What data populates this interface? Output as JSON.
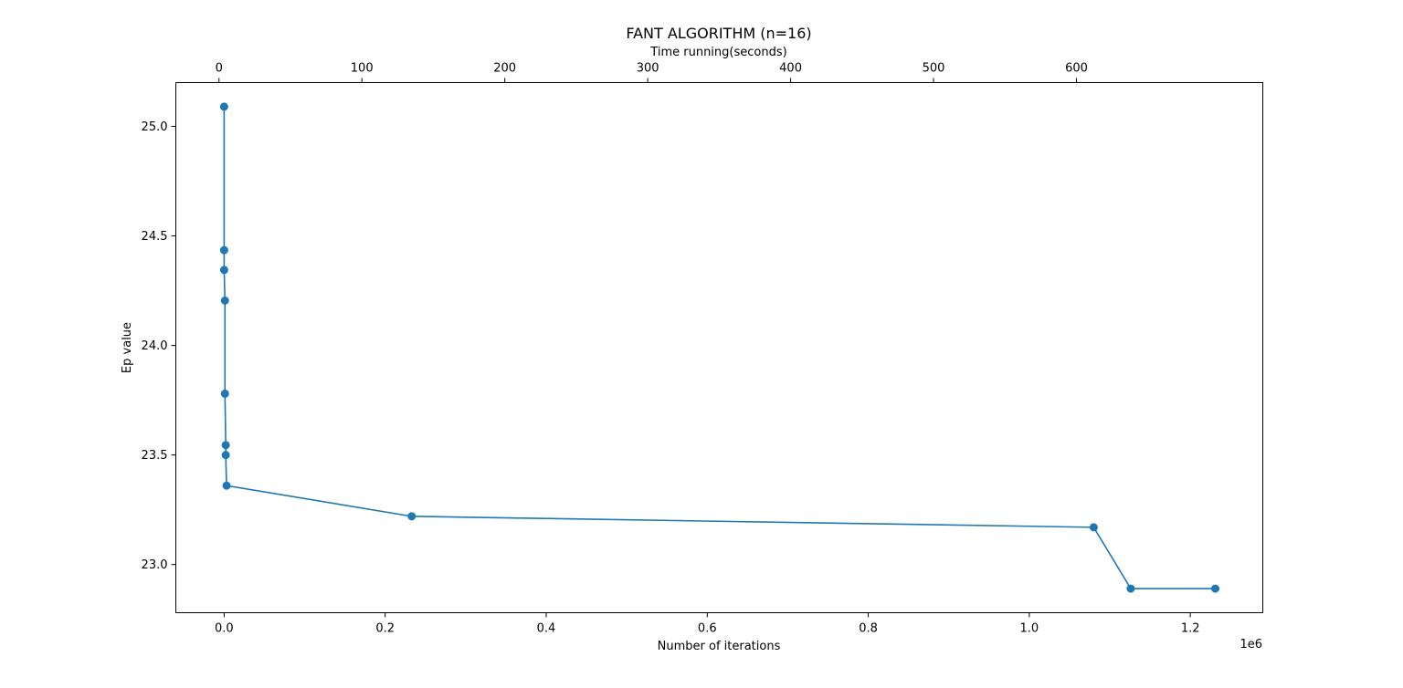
{
  "chart_data": {
    "type": "line",
    "title": "FANT ALGORITHM (n=16)",
    "xlabel": "Number of iterations",
    "ylabel": "Ep value",
    "x_offset_label": "1e6",
    "top_xlabel": "Time running(seconds)",
    "xlim": [
      -0.06,
      1.29
    ],
    "ylim": [
      22.78,
      25.2
    ],
    "top_xlim": [
      -30.2,
      730.4
    ],
    "x_ticks": [
      {
        "value": 0.0,
        "label": "0.0"
      },
      {
        "value": 0.2,
        "label": "0.2"
      },
      {
        "value": 0.4,
        "label": "0.4"
      },
      {
        "value": 0.6,
        "label": "0.6"
      },
      {
        "value": 0.8,
        "label": "0.8"
      },
      {
        "value": 1.0,
        "label": "1.0"
      },
      {
        "value": 1.2,
        "label": "1.2"
      }
    ],
    "top_x_ticks": [
      {
        "value": 0,
        "label": "0"
      },
      {
        "value": 100,
        "label": "100"
      },
      {
        "value": 200,
        "label": "200"
      },
      {
        "value": 300,
        "label": "300"
      },
      {
        "value": 400,
        "label": "400"
      },
      {
        "value": 500,
        "label": "500"
      },
      {
        "value": 600,
        "label": "600"
      }
    ],
    "y_ticks": [
      {
        "value": 23.0,
        "label": "23.0"
      },
      {
        "value": 23.5,
        "label": "23.5"
      },
      {
        "value": 24.0,
        "label": "24.0"
      },
      {
        "value": 24.5,
        "label": "24.5"
      },
      {
        "value": 25.0,
        "label": "25.0"
      }
    ],
    "grid": false,
    "color": "#1f77b4",
    "series": [
      {
        "x": [
          0.0,
          0.0,
          0.0,
          0.001,
          0.001,
          0.002,
          0.002,
          0.003,
          0.233,
          1.08,
          1.126,
          1.231
        ],
        "y": [
          25.09,
          24.435,
          24.345,
          24.205,
          23.78,
          23.545,
          23.5,
          23.36,
          23.22,
          23.17,
          22.89,
          22.89
        ]
      }
    ]
  }
}
